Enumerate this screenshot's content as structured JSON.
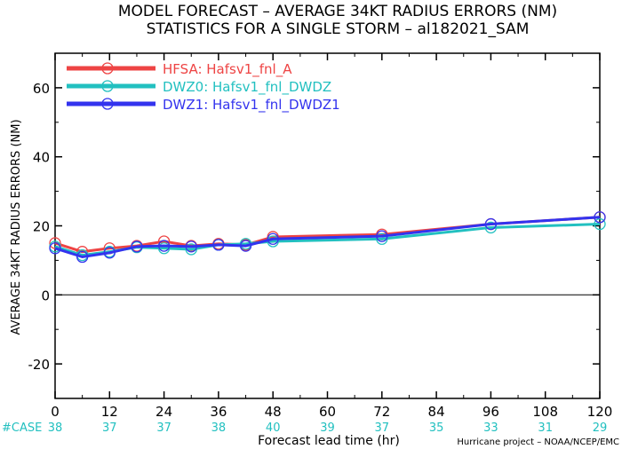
{
  "chart_data": {
    "type": "line",
    "title": "MODEL FORECAST – AVERAGE 34KT RADIUS ERRORS (NM)",
    "subtitle": "STATISTICS FOR A SINGLE STORM – al182021_SAM",
    "xlabel": "Forecast lead time (hr)",
    "ylabel": "AVERAGE 34KT RADIUS ERRORS (NM)",
    "xlim": [
      0,
      120
    ],
    "ylim": [
      -30,
      70
    ],
    "x_ticks": [
      0,
      12,
      24,
      36,
      48,
      60,
      72,
      84,
      96,
      108,
      120
    ],
    "y_ticks": [
      -20,
      0,
      20,
      40,
      60
    ],
    "grid": false,
    "legend_position": "top-left",
    "case_label": "#CASE",
    "case_counts": [
      38,
      37,
      37,
      38,
      40,
      39,
      37,
      35,
      33,
      31,
      29
    ],
    "case_color": "#22c0c0",
    "x": [
      0,
      6,
      12,
      18,
      24,
      30,
      36,
      42,
      48,
      72,
      96,
      120
    ],
    "series": [
      {
        "name": "HFSA:  Hafsv1_fnl_A",
        "color": "#ee4444",
        "values": [
          15,
          12.5,
          13.5,
          14.2,
          15.5,
          14.2,
          14.8,
          14.5,
          16.8,
          17.5,
          20.5,
          22.5
        ]
      },
      {
        "name": "DWZ0:  Hafsv1_fnl_DWDZ",
        "color": "#22c0c0",
        "values": [
          14,
          11.5,
          12.5,
          13.8,
          13.5,
          13.2,
          14.5,
          14.8,
          15.5,
          16.2,
          19.5,
          20.5
        ]
      },
      {
        "name": "DWZ1:  Hafsv1_fnl_DWDZ1",
        "color": "#3333ee",
        "values": [
          13.5,
          11,
          12.2,
          14,
          14.2,
          14,
          14.5,
          14.2,
          16.2,
          17,
          20.5,
          22.5
        ]
      }
    ],
    "credit": "Hurricane project – NOAA/NCEP/EMC"
  }
}
